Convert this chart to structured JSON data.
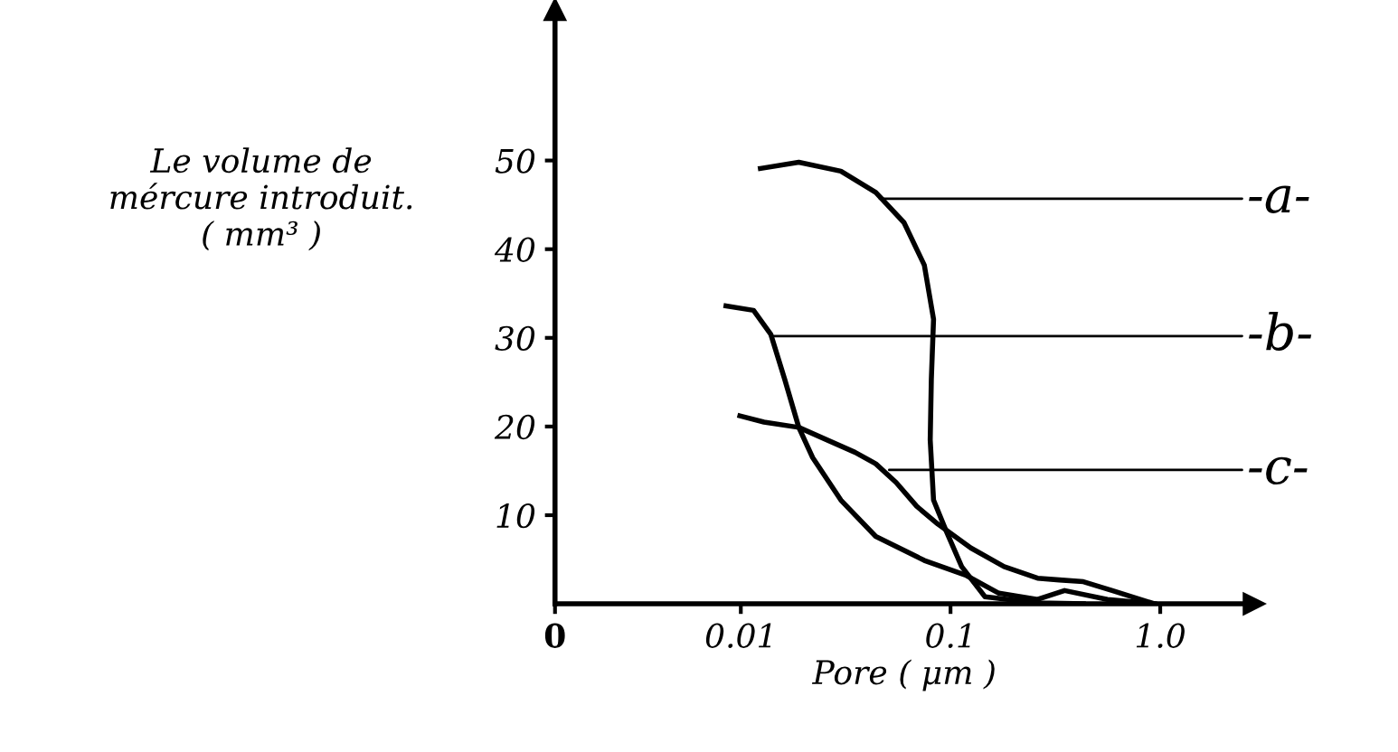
{
  "chart_data": {
    "type": "line",
    "xlabel": "Pore ( μm )",
    "ylabel": "Le volume de\nmércure introduit.\n( mm³ )",
    "log": "x",
    "xlim": [
      0.0013,
      2.8
    ],
    "ylim": [
      0,
      67
    ],
    "xticks": [
      {
        "value": 0.0013,
        "label": "0"
      },
      0.01,
      0.1,
      {
        "value": 1.0,
        "label": "1.0"
      }
    ],
    "yticks": [
      10,
      20,
      30,
      40,
      50
    ],
    "grid": false,
    "marker": "none",
    "line_style": "solid",
    "series": [
      {
        "color": "#000000",
        "x": [
          0.0124,
          0.0189,
          0.03,
          0.044,
          0.06,
          0.075,
          0.083,
          0.081,
          0.08,
          0.083,
          0.095,
          0.113,
          0.146,
          0.26,
          0.43
        ],
        "values": [
          49.1,
          49.8,
          48.8,
          46.4,
          43.0,
          38.2,
          32.1,
          25.3,
          18.5,
          11.7,
          8.3,
          4.2,
          0.8,
          0.1,
          0
        ]
      },
      {
        "color": "#000000",
        "x": [
          0.0085,
          0.0115,
          0.0139,
          0.0162,
          0.0189,
          0.022,
          0.03,
          0.044,
          0.075,
          0.119,
          0.17,
          0.26,
          0.35,
          0.56,
          0.94
        ],
        "values": [
          33.6,
          33.1,
          30.4,
          25.3,
          19.9,
          16.5,
          11.7,
          7.6,
          4.9,
          3.2,
          1.2,
          0.5,
          1.5,
          0.5,
          0
        ]
      },
      {
        "color": "#000000",
        "x": [
          0.0099,
          0.0129,
          0.0189,
          0.0257,
          0.035,
          0.044,
          0.055,
          0.069,
          0.087,
          0.125,
          0.18,
          0.26,
          0.33,
          0.43,
          0.59,
          0.94
        ],
        "values": [
          21.2,
          20.5,
          19.9,
          18.5,
          17.1,
          15.8,
          13.7,
          11.0,
          9.0,
          6.3,
          4.2,
          2.9,
          2.7,
          2.5,
          1.5,
          0
        ]
      }
    ],
    "annotations": [
      {
        "text": "-a-",
        "x": 0.046,
        "y": 45.7
      },
      {
        "text": "-b-",
        "x": 0.014,
        "y": 30.2
      },
      {
        "text": "-c-",
        "x": 0.051,
        "y": 15.1
      }
    ]
  }
}
